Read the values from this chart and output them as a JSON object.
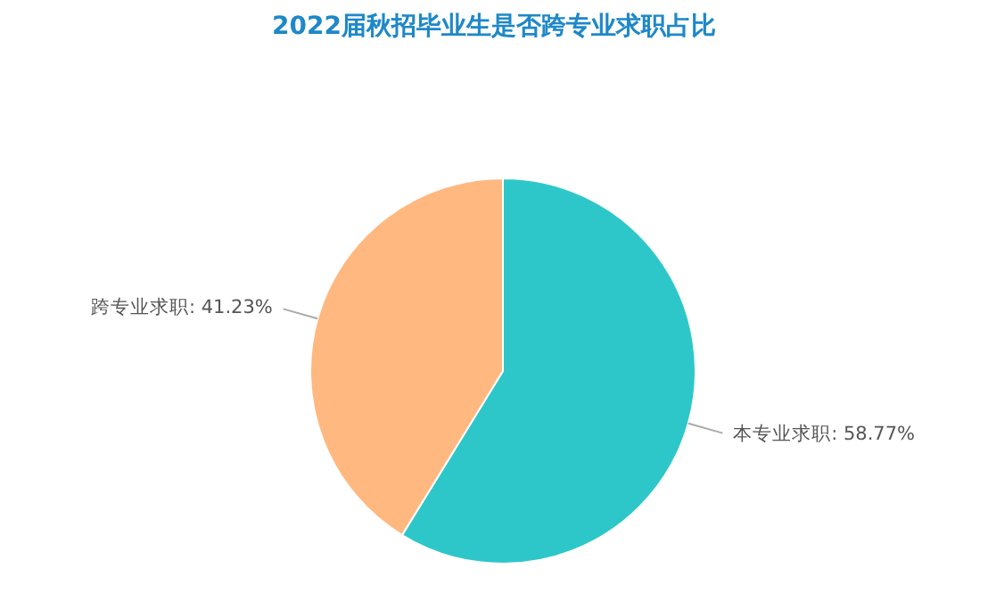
{
  "chart_data": {
    "type": "pie",
    "title": "2022届秋招毕业生是否跨专业求职占比",
    "categories": [
      "本专业求职",
      "跨专业求职"
    ],
    "values": [
      58.77,
      41.23
    ],
    "colors": [
      "#2ec7c9",
      "#ffb980"
    ],
    "value_labels": [
      "58.77%",
      "41.23%"
    ],
    "legend": false
  }
}
